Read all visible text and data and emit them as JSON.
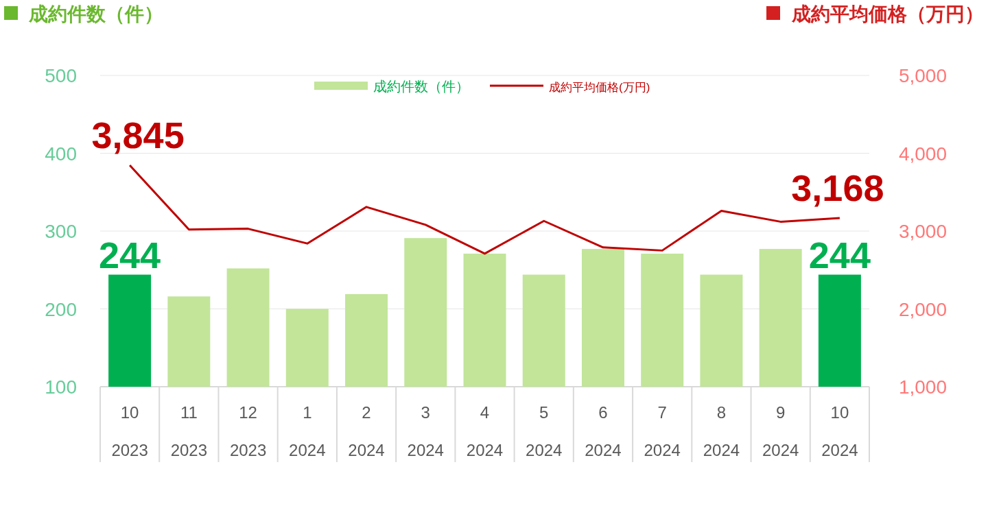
{
  "chart_data": {
    "type": "bar",
    "ylabel": "成約件数（件）",
    "y2label": "成約平均価格（万円）",
    "categories": [
      "10\n2023",
      "11\n2023",
      "12\n2023",
      "1\n2024",
      "2\n2024",
      "3\n2024",
      "4\n2024",
      "5\n2024",
      "6\n2024",
      "7\n2024",
      "8\n2024",
      "9\n2024",
      "10\n2024"
    ],
    "series": [
      {
        "name": "成約件数（件）",
        "color": "#c2e59a",
        "colors": [
          "#00b050",
          "#c2e59a",
          "#c2e59a",
          "#c2e59a",
          "#c2e59a",
          "#c2e59a",
          "#c2e59a",
          "#c2e59a",
          "#c2e59a",
          "#c2e59a",
          "#c2e59a",
          "#c2e59a",
          "#00b050"
        ],
        "values": [
          244,
          216,
          252,
          200,
          219,
          291,
          271,
          244,
          277,
          271,
          244,
          277,
          244
        ],
        "value_labels": [
          "244",
          null,
          null,
          null,
          null,
          null,
          null,
          null,
          null,
          null,
          null,
          null,
          "244"
        ]
      },
      {
        "name": "成約平均価格(万円)",
        "type": "line",
        "axis": "y2",
        "color": "#c00000",
        "marker": "none",
        "values": [
          3845,
          3020,
          3030,
          2840,
          3310,
          3080,
          2710,
          3130,
          2790,
          2750,
          3260,
          3120,
          3168
        ],
        "value_labels": [
          "3,845",
          null,
          null,
          null,
          null,
          null,
          null,
          null,
          null,
          null,
          null,
          null,
          "3,168"
        ]
      }
    ],
    "ylim": [
      100,
      500
    ],
    "yticks": [
      100,
      200,
      300,
      400,
      500
    ],
    "y2lim": [
      1000,
      5000
    ],
    "y2ticks": [
      {
        "value": 1000,
        "label": "1,000"
      },
      {
        "value": 2000,
        "label": "2,000"
      },
      {
        "value": 3000,
        "label": "3,000"
      },
      {
        "value": 4000,
        "label": "4,000"
      },
      {
        "value": 5000,
        "label": "5,000"
      }
    ],
    "grid": "y",
    "legend": "top"
  }
}
